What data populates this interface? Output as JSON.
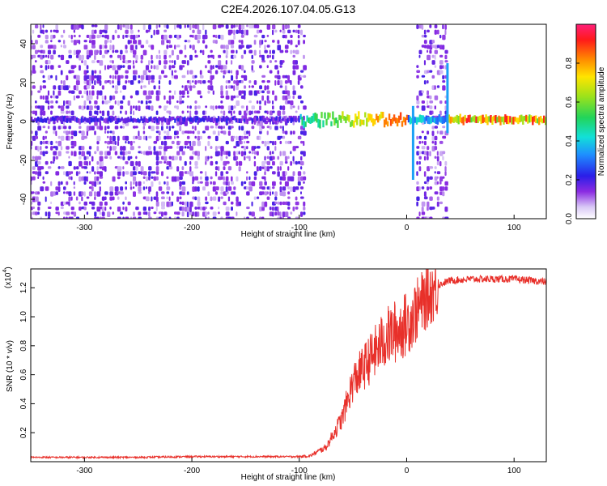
{
  "title": "C2E4.2026.107.04.05.G13",
  "chart_data": [
    {
      "type": "heatmap",
      "name": "spectrogram",
      "xlabel": "Height of straight line (km)",
      "ylabel": "Frequency (Hz)",
      "xlim": [
        -350,
        130
      ],
      "ylim": [
        -50,
        50
      ],
      "xticks": [
        -300,
        -200,
        -100,
        0,
        100
      ],
      "yticks": [
        -40,
        -20,
        0,
        20,
        40
      ],
      "xtick_labels": [
        "-300",
        "-200",
        "-100",
        "0",
        "100"
      ],
      "ytick_labels": [
        "-40",
        "-20",
        "0",
        "20",
        "40"
      ],
      "colorbar": {
        "label": "Normalized spectral amplitude",
        "range": [
          0,
          1
        ],
        "ticks": [
          0.0,
          0.2,
          0.4,
          0.6,
          0.8
        ],
        "tick_labels": [
          "0.0",
          "0.2",
          "0.4",
          "0.6",
          "0.8"
        ]
      },
      "features": [
        {
          "kind": "noise-region",
          "x": [
            -350,
            -95
          ],
          "y": [
            -50,
            50
          ],
          "amplitude": 0.15
        },
        {
          "kind": "noise-region",
          "x": [
            8,
            38
          ],
          "y": [
            -50,
            50
          ],
          "amplitude": 0.15
        },
        {
          "kind": "carrier",
          "x": [
            -350,
            130
          ],
          "freq_hz": 1,
          "peak_amplitude": 0.95
        },
        {
          "kind": "spike",
          "x": 6,
          "y": [
            -30,
            8
          ]
        },
        {
          "kind": "spike",
          "x": 38,
          "y": [
            -6,
            30
          ]
        }
      ]
    },
    {
      "type": "line",
      "name": "snr",
      "xlabel": "Height of straight line (km)",
      "ylabel": "SNR (10 * v/v)",
      "y_multiplier": "(x10",
      "y_multiplier_exp": "4",
      "y_multiplier_close": ")",
      "xlim": [
        -350,
        130
      ],
      "ylim": [
        0.0,
        1.33
      ],
      "xticks": [
        -300,
        -200,
        -100,
        0,
        100
      ],
      "xtick_labels": [
        "-300",
        "-200",
        "-100",
        "0",
        "100"
      ],
      "yticks": [
        0.2,
        0.4,
        0.6,
        0.8,
        1.0,
        1.2
      ],
      "ytick_labels": [
        "0.2",
        "0.4",
        "0.6",
        "0.8",
        "1.0",
        "1.2"
      ],
      "color": "#e8302a",
      "series": [
        {
          "name": "SNR",
          "x": [
            -350,
            -300,
            -250,
            -200,
            -150,
            -100,
            -90,
            -75,
            -60,
            -50,
            -40,
            -30,
            -20,
            -10,
            0,
            10,
            20,
            30,
            40,
            60,
            80,
            100,
            115,
            130
          ],
          "y": [
            0.03,
            0.03,
            0.03,
            0.035,
            0.035,
            0.035,
            0.04,
            0.1,
            0.3,
            0.55,
            0.65,
            0.75,
            0.85,
            0.9,
            0.95,
            1.05,
            1.15,
            1.22,
            1.25,
            1.26,
            1.26,
            1.26,
            1.25,
            1.24
          ]
        }
      ]
    }
  ]
}
